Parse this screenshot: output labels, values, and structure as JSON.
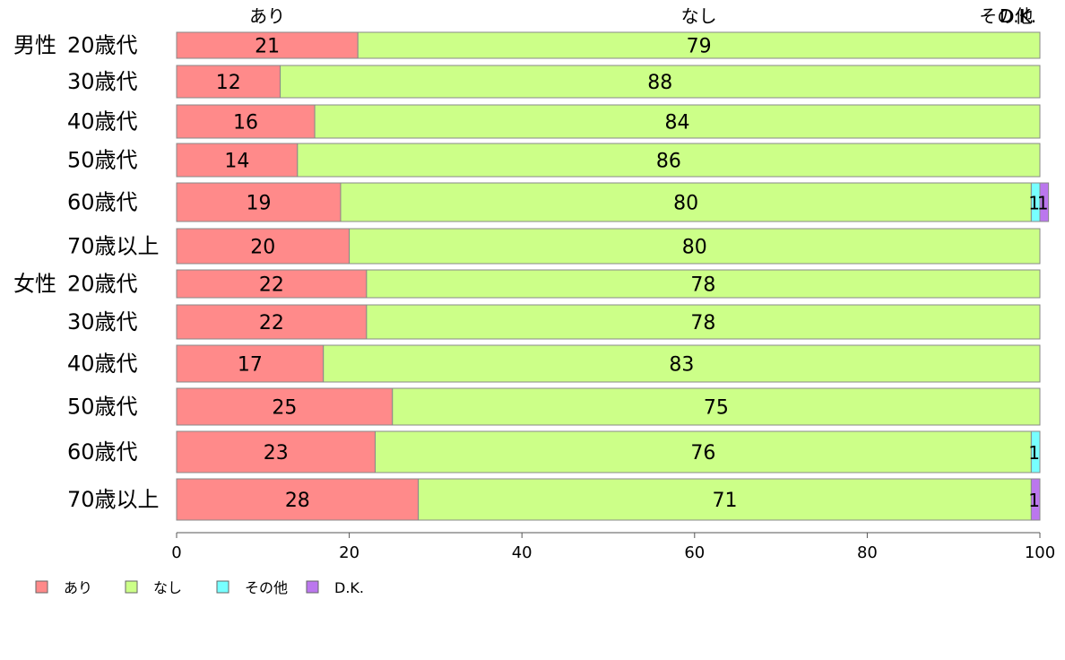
{
  "chart_data": {
    "type": "bar",
    "orientation": "horizontal",
    "stacked": true,
    "xlim": [
      0,
      100
    ],
    "x_ticks": [
      0,
      20,
      40,
      60,
      80,
      100
    ],
    "top_labels": [
      {
        "text": "あり",
        "x": 10.5
      },
      {
        "text": "なし",
        "x": 60.5
      },
      {
        "text": "その他",
        "x": 99.2
      },
      {
        "text": "D.K.",
        "x": 99.6
      }
    ],
    "legend_position": "bottom-left",
    "series": [
      {
        "name": "あり",
        "color": "#ff8a8a"
      },
      {
        "name": "なし",
        "color": "#ccff88"
      },
      {
        "name": "その他",
        "color": "#77ffff"
      },
      {
        "name": "D.K.",
        "color": "#bb77ee"
      }
    ],
    "rows": [
      {
        "group": "男性",
        "label": "20歳代",
        "values": [
          21,
          79,
          0,
          0
        ]
      },
      {
        "group": "",
        "label": "30歳代",
        "values": [
          12,
          88,
          0,
          0
        ]
      },
      {
        "group": "",
        "label": "40歳代",
        "values": [
          16,
          84,
          0,
          0
        ]
      },
      {
        "group": "",
        "label": "50歳代",
        "values": [
          14,
          86,
          0,
          0
        ]
      },
      {
        "group": "",
        "label": "60歳代",
        "values": [
          19,
          80,
          1,
          1
        ]
      },
      {
        "group": "",
        "label": "70歳以上",
        "values": [
          20,
          80,
          0,
          0
        ]
      },
      {
        "group": "女性",
        "label": "20歳代",
        "values": [
          22,
          78,
          0,
          0
        ]
      },
      {
        "group": "",
        "label": "30歳代",
        "values": [
          22,
          78,
          0,
          0
        ]
      },
      {
        "group": "",
        "label": "40歳代",
        "values": [
          17,
          83,
          0,
          0
        ]
      },
      {
        "group": "",
        "label": "50歳代",
        "values": [
          25,
          75,
          0,
          0
        ]
      },
      {
        "group": "",
        "label": "60歳代",
        "values": [
          23,
          76,
          1,
          0
        ]
      },
      {
        "group": "",
        "label": "70歳以上",
        "values": [
          28,
          71,
          0,
          1
        ]
      }
    ]
  }
}
